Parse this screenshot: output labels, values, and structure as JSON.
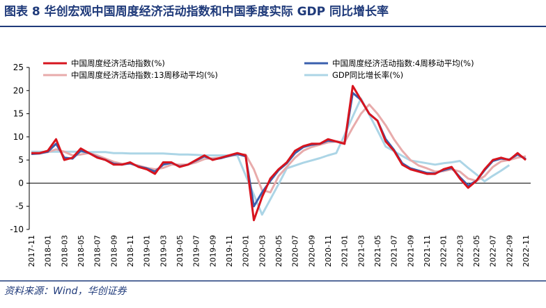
{
  "title": "图表 8    华创宏观中国周度经济活动指数和中国季度实际 GDP 同比增长率",
  "source": "资料来源：Wind，华创证券",
  "chart_data": {
    "type": "line",
    "categories": [
      "2017-11",
      null,
      "2018-01",
      null,
      "2018-03",
      null,
      "2018-05",
      null,
      "2018-07",
      null,
      "2018-09",
      null,
      "2018-11",
      null,
      "2019-01",
      null,
      "2019-03",
      null,
      "2019-05",
      null,
      "2019-07",
      null,
      "2019-09",
      null,
      "2019-11",
      null,
      "2020-01",
      null,
      "2020-03",
      null,
      "2020-05",
      null,
      "2020-07",
      null,
      "2020-09",
      null,
      "2020-11",
      null,
      "2021-01",
      null,
      "2021-03",
      null,
      "2021-05",
      null,
      "2021-07",
      null,
      "2021-09",
      null,
      "2021-11",
      null,
      "2022-01",
      null,
      "2022-03",
      null,
      "2022-05",
      null,
      "2022-07",
      null,
      "2022-09",
      null,
      "2022-11"
    ],
    "ylim": [
      -10,
      25
    ],
    "yticks": [
      -10,
      -5,
      0,
      5,
      10,
      15,
      20,
      25
    ],
    "series": [
      {
        "name": "中国周度经济活动指数(%)",
        "color": "#d7141e",
        "width": 3,
        "values": [
          6.5,
          6.5,
          7,
          9.5,
          5,
          5.5,
          7.5,
          6.5,
          5.5,
          5,
          4,
          4,
          4.5,
          3.5,
          3,
          2,
          4.5,
          4.5,
          3.5,
          4,
          5,
          6,
          5,
          5.5,
          6,
          6.5,
          6,
          -8,
          -3,
          1,
          3,
          4.5,
          7,
          8,
          8.5,
          8.5,
          9.5,
          9,
          8.5,
          21,
          18,
          15,
          13.5,
          9,
          7,
          4,
          3,
          2.5,
          2,
          2,
          3,
          3.5,
          1,
          -1,
          0.5,
          3,
          5,
          5.5,
          5,
          6.5,
          5
        ]
      },
      {
        "name": "中国周度经济活动指数:4周移动平均(%)",
        "color": "#3a5fad",
        "width": 3,
        "values": [
          6.3,
          6.4,
          6.8,
          8.5,
          5.5,
          5.3,
          7,
          6.5,
          5.6,
          5,
          4.2,
          4,
          4.3,
          3.6,
          3.2,
          2.5,
          4,
          4.4,
          3.6,
          4,
          4.9,
          5.8,
          5.1,
          5.4,
          5.9,
          6.3,
          5.8,
          -5,
          -2,
          0.5,
          2.8,
          4.3,
          6.5,
          7.8,
          8.3,
          8.5,
          9.2,
          9,
          8.5,
          19.5,
          18,
          15,
          13.5,
          9.5,
          7.2,
          4.3,
          3.2,
          2.7,
          2.2,
          2.1,
          2.8,
          3.3,
          1.3,
          -0.5,
          0.5,
          2.8,
          4.8,
          5.3,
          5.1,
          6.2,
          5.2
        ]
      },
      {
        "name": "中国周度经济活动指数:13周移动平均(%)",
        "color": "#e8abab",
        "width": 3,
        "values": [
          6.5,
          6.5,
          6.7,
          7.3,
          6.8,
          6,
          6.2,
          6.5,
          6,
          5.3,
          4.6,
          4.2,
          4.2,
          3.8,
          3.3,
          3,
          3.3,
          4,
          4,
          4,
          4.5,
          5.2,
          5.4,
          5.5,
          5.8,
          6.2,
          6.2,
          3,
          -1.5,
          -2,
          1.5,
          3.5,
          5.5,
          7,
          7.8,
          8.3,
          8.8,
          9,
          8.8,
          12,
          15,
          17,
          15,
          12.5,
          9.5,
          7,
          5,
          3.8,
          3.2,
          2.5,
          2.6,
          3,
          2.5,
          1,
          0.5,
          1.5,
          3.5,
          4.7,
          5,
          5.5,
          5.8
        ]
      },
      {
        "name": "GDP同比增长率(%)",
        "color": "#acd5e6",
        "width": 3,
        "values": [
          6.8,
          6.8,
          6.8,
          6.8,
          6.8,
          6.8,
          6.8,
          6.7,
          6.7,
          6.7,
          6.5,
          6.5,
          6.4,
          6.4,
          6.4,
          6.4,
          6.4,
          6.3,
          6.2,
          6.2,
          6.1,
          6.0,
          6.0,
          6.0,
          6.0,
          6.0,
          1.7,
          -2.5,
          -6.8,
          -3.5,
          -0.2,
          3.2,
          3.8,
          4.4,
          4.9,
          5.4,
          6.0,
          6.5,
          10.4,
          14.4,
          18.3,
          14.8,
          11.4,
          7.9,
          6.9,
          5.9,
          4.9,
          4.6,
          4.3,
          4.0,
          4.3,
          4.5,
          4.8,
          3.3,
          1.9,
          0.4,
          1.6,
          2.7,
          3.9,
          null,
          null
        ]
      }
    ]
  }
}
